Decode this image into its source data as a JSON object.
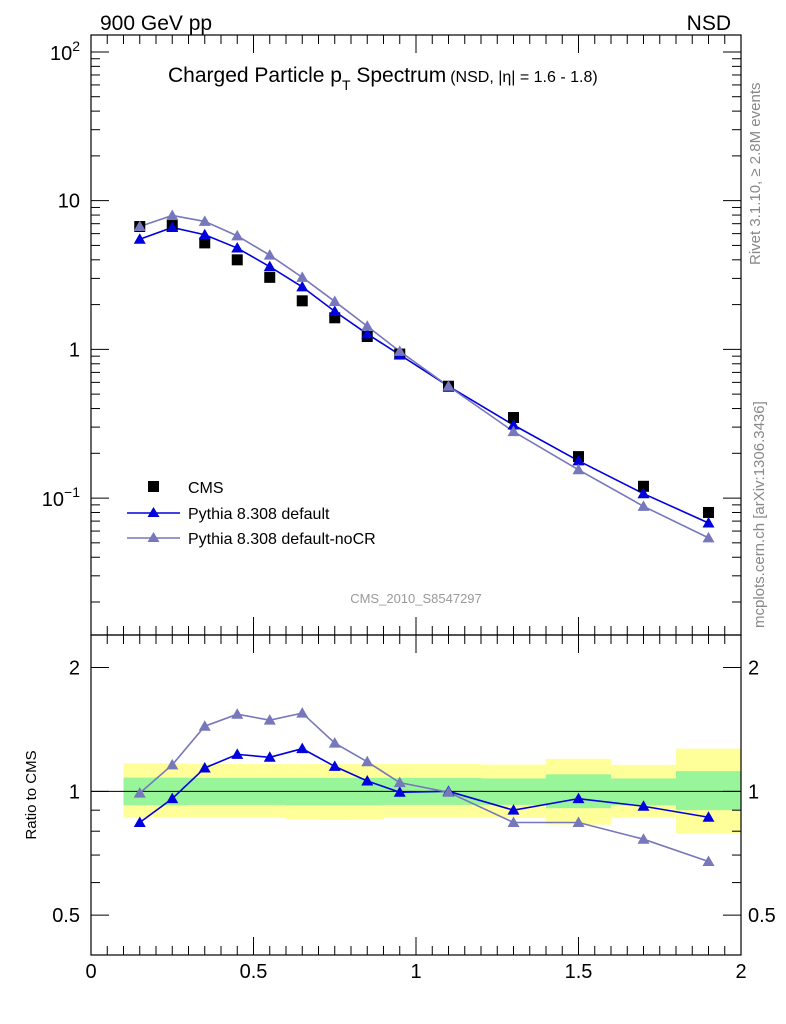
{
  "header": {
    "left": "900 GeV pp",
    "right": "NSD"
  },
  "side_labels": {
    "rivet": "Rivet 3.1.10, ≥ 2.8M events",
    "mcplots": "mcplots.cern.ch [arXiv:1306.3436]"
  },
  "title": {
    "main": "Charged Particle p",
    "sub": "T",
    "main2": " Spectrum",
    "note": "(NSD, |η| = 1.6 - 1.8)"
  },
  "watermark": "CMS_2010_S8547297",
  "ratio_ylabel": "Ratio to CMS",
  "colors": {
    "data": "#000000",
    "pythia_default": "#0000dd",
    "pythia_nocr": "#7777bb",
    "band_inner": "#99f599",
    "band_outer": "#ffff99"
  },
  "chart_data": [
    {
      "type": "scatter",
      "panel": "main",
      "yscale": "log",
      "xlim": [
        0,
        2
      ],
      "ylim": [
        0.012,
        130
      ],
      "x_ticks": [],
      "y_tick_labels": [
        {
          "value": 100,
          "base": "10",
          "exp": "2"
        },
        {
          "value": 10,
          "text": "10"
        },
        {
          "value": 1,
          "text": "1"
        },
        {
          "value": 0.1,
          "base": "10",
          "exp": "−1"
        }
      ],
      "legend": {
        "position": "bottom-left",
        "entries": [
          "CMS",
          "Pythia 8.308 default",
          "Pythia 8.308 default-noCR"
        ]
      },
      "series": [
        {
          "name": "CMS",
          "marker": "square",
          "line": false,
          "x": [
            0.15,
            0.25,
            0.35,
            0.45,
            0.55,
            0.65,
            0.75,
            0.85,
            0.95,
            1.1,
            1.3,
            1.5,
            1.7,
            1.9
          ],
          "values": [
            6.7,
            6.8,
            5.2,
            4.0,
            3.05,
            2.12,
            1.63,
            1.22,
            0.93,
            0.565,
            0.348,
            0.19,
            0.12,
            0.08
          ]
        },
        {
          "name": "Pythia 8.308 default",
          "marker": "triangle",
          "line": true,
          "x": [
            0.15,
            0.25,
            0.35,
            0.45,
            0.55,
            0.65,
            0.75,
            0.85,
            0.95,
            1.1,
            1.3,
            1.5,
            1.7,
            1.9
          ],
          "values": [
            5.5,
            6.6,
            5.9,
            4.8,
            3.6,
            2.63,
            1.8,
            1.27,
            0.92,
            0.565,
            0.31,
            0.178,
            0.107,
            0.068
          ]
        },
        {
          "name": "Pythia 8.308 default-noCR",
          "marker": "triangle",
          "line": true,
          "x": [
            0.15,
            0.25,
            0.35,
            0.45,
            0.55,
            0.65,
            0.75,
            0.85,
            0.95,
            1.1,
            1.3,
            1.5,
            1.7,
            1.9
          ],
          "values": [
            6.7,
            7.95,
            7.25,
            5.8,
            4.3,
            3.05,
            2.1,
            1.43,
            0.97,
            0.565,
            0.28,
            0.155,
            0.088,
            0.054
          ]
        }
      ]
    },
    {
      "type": "line",
      "panel": "ratio",
      "yscale": "log",
      "xlim": [
        0,
        2
      ],
      "ylim": [
        0.4,
        2.4
      ],
      "x_tick_labels": [
        "0",
        "0.5",
        "1",
        "1.5",
        "2"
      ],
      "y_tick_labels": [
        "0.5",
        "1",
        "2"
      ],
      "ylabel": "Ratio to CMS",
      "bands": [
        {
          "x0": 0.1,
          "x1": 0.2,
          "outer": [
            0.865,
            1.17
          ],
          "inner": [
            0.925,
            1.08
          ]
        },
        {
          "x0": 0.2,
          "x1": 0.3,
          "outer": [
            0.862,
            1.17
          ],
          "inner": [
            0.925,
            1.08
          ]
        },
        {
          "x0": 0.3,
          "x1": 0.4,
          "outer": [
            0.862,
            1.165
          ],
          "inner": [
            0.927,
            1.078
          ]
        },
        {
          "x0": 0.4,
          "x1": 0.5,
          "outer": [
            0.862,
            1.165
          ],
          "inner": [
            0.927,
            1.078
          ]
        },
        {
          "x0": 0.5,
          "x1": 0.6,
          "outer": [
            0.862,
            1.165
          ],
          "inner": [
            0.927,
            1.078
          ]
        },
        {
          "x0": 0.6,
          "x1": 0.7,
          "outer": [
            0.855,
            1.165
          ],
          "inner": [
            0.925,
            1.078
          ]
        },
        {
          "x0": 0.7,
          "x1": 0.8,
          "outer": [
            0.852,
            1.165
          ],
          "inner": [
            0.925,
            1.078
          ]
        },
        {
          "x0": 0.8,
          "x1": 0.9,
          "outer": [
            0.855,
            1.165
          ],
          "inner": [
            0.925,
            1.078
          ]
        },
        {
          "x0": 0.9,
          "x1": 1.0,
          "outer": [
            0.862,
            1.165
          ],
          "inner": [
            0.927,
            1.078
          ]
        },
        {
          "x0": 1.0,
          "x1": 1.2,
          "outer": [
            0.862,
            1.165
          ],
          "inner": [
            0.927,
            1.078
          ]
        },
        {
          "x0": 1.2,
          "x1": 1.4,
          "outer": [
            0.862,
            1.162
          ],
          "inner": [
            0.927,
            1.075
          ]
        },
        {
          "x0": 1.4,
          "x1": 1.6,
          "outer": [
            0.83,
            1.2
          ],
          "inner": [
            0.91,
            1.1
          ]
        },
        {
          "x0": 1.6,
          "x1": 1.8,
          "outer": [
            0.862,
            1.16
          ],
          "inner": [
            0.925,
            1.075
          ]
        },
        {
          "x0": 1.8,
          "x1": 2.0,
          "outer": [
            0.79,
            1.27
          ],
          "inner": [
            0.9,
            1.12
          ]
        }
      ],
      "reference": 1,
      "series": [
        {
          "name": "Pythia 8.308 default",
          "x": [
            0.15,
            0.25,
            0.35,
            0.45,
            0.55,
            0.65,
            0.75,
            0.85,
            0.95,
            1.1,
            1.3,
            1.5,
            1.7,
            1.9
          ],
          "values": [
            0.84,
            0.96,
            1.14,
            1.23,
            1.21,
            1.27,
            1.15,
            1.06,
            0.995,
            1.0,
            0.9,
            0.96,
            0.92,
            0.865
          ]
        },
        {
          "name": "Pythia 8.308 default-noCR",
          "x": [
            0.15,
            0.25,
            0.35,
            0.45,
            0.55,
            0.65,
            0.75,
            0.85,
            0.95,
            1.1,
            1.3,
            1.5,
            1.7,
            1.9
          ],
          "values": [
            0.99,
            1.16,
            1.44,
            1.54,
            1.49,
            1.55,
            1.31,
            1.18,
            1.05,
            0.995,
            0.84,
            0.84,
            0.765,
            0.675
          ]
        }
      ]
    }
  ]
}
